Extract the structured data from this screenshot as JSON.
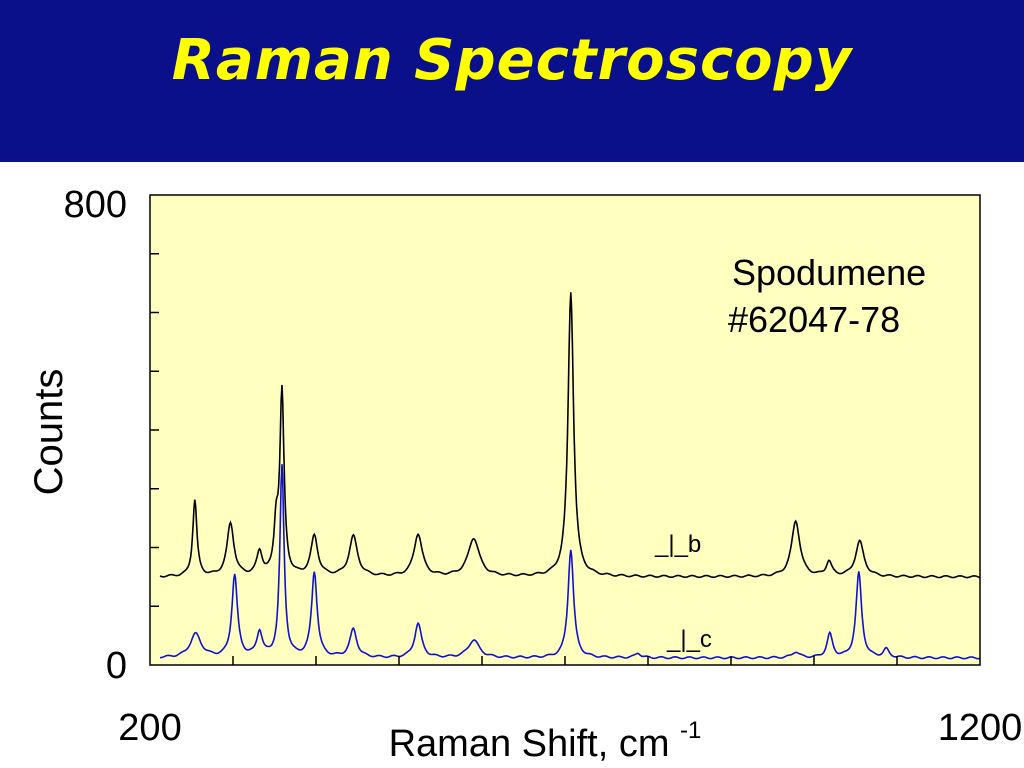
{
  "slide": {
    "title": "Raman Spectroscopy"
  },
  "colors": {
    "header_bg": "#0a0f8a",
    "title_text": "#ffff00",
    "plot_bg": "#ffffc0",
    "series_b": "#000000",
    "series_c": "#1010d0"
  },
  "chart_data": {
    "type": "line",
    "title": "",
    "annotation": [
      "Spodumene",
      "#62047-78"
    ],
    "xlabel": "Raman Shift, cm",
    "xlabel_superscript": "-1",
    "ylabel": "Counts",
    "xlim": [
      200,
      1200
    ],
    "ylim": [
      0,
      800
    ],
    "x_tick_labels": [
      "200",
      "1200"
    ],
    "y_tick_labels": [
      "0",
      "800"
    ],
    "y_minor_ticks": [
      100,
      200,
      300,
      400,
      500,
      600,
      700
    ],
    "x_minor_ticks": [
      300,
      400,
      500,
      600,
      700,
      800,
      900,
      1000,
      1100
    ],
    "grid": false,
    "series": [
      {
        "name": "_|_b",
        "baseline": 150,
        "peaks": [
          {
            "x": 254,
            "height": 130,
            "width": 3
          },
          {
            "x": 297,
            "height": 90,
            "width": 5
          },
          {
            "x": 332,
            "height": 40,
            "width": 4
          },
          {
            "x": 352,
            "height": 80,
            "width": 3
          },
          {
            "x": 359,
            "height": 310,
            "width": 3
          },
          {
            "x": 398,
            "height": 68,
            "width": 5
          },
          {
            "x": 445,
            "height": 68,
            "width": 6
          },
          {
            "x": 523,
            "height": 72,
            "width": 6
          },
          {
            "x": 590,
            "height": 65,
            "width": 8
          },
          {
            "x": 707,
            "height": 485,
            "width": 4
          },
          {
            "x": 978,
            "height": 95,
            "width": 6
          },
          {
            "x": 1018,
            "height": 25,
            "width": 4
          },
          {
            "x": 1055,
            "height": 60,
            "width": 6
          }
        ]
      },
      {
        "name": "_|_c",
        "baseline": 12,
        "peaks": [
          {
            "x": 255,
            "height": 40,
            "width": 8
          },
          {
            "x": 302,
            "height": 140,
            "width": 4
          },
          {
            "x": 332,
            "height": 42,
            "width": 4
          },
          {
            "x": 359,
            "height": 325,
            "width": 3
          },
          {
            "x": 398,
            "height": 145,
            "width": 4
          },
          {
            "x": 445,
            "height": 48,
            "width": 5
          },
          {
            "x": 523,
            "height": 58,
            "width": 5
          },
          {
            "x": 590,
            "height": 30,
            "width": 8
          },
          {
            "x": 707,
            "height": 185,
            "width": 4
          },
          {
            "x": 788,
            "height": 8,
            "width": 4
          },
          {
            "x": 978,
            "height": 10,
            "width": 5
          },
          {
            "x": 1019,
            "height": 40,
            "width": 4
          },
          {
            "x": 1054,
            "height": 145,
            "width": 4
          },
          {
            "x": 1087,
            "height": 14,
            "width": 4
          }
        ]
      }
    ]
  }
}
